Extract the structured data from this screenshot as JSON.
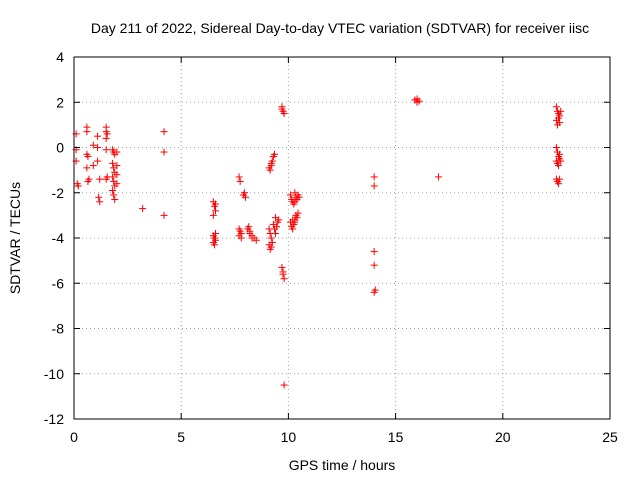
{
  "chart_data": {
    "type": "scatter",
    "title": "Day 211 of 2022, Sidereal Day-to-day VTEC variation (SDTVAR) for receiver iisc",
    "xlabel": "GPS time / hours",
    "ylabel": "SDTVAR / TECUs",
    "xlim": [
      0,
      25
    ],
    "ylim": [
      -12,
      4
    ],
    "xticks": [
      0,
      5,
      10,
      15,
      20,
      25
    ],
    "xtick_labels": [
      "0",
      "5",
      "10",
      "15",
      "20",
      "25"
    ],
    "yticks": [
      4,
      2,
      0,
      -2,
      -4,
      -6,
      -8,
      -10,
      -12
    ],
    "ytick_labels": [
      "4",
      "2",
      "0",
      "-2",
      "-4",
      "-6",
      "-8",
      "-10",
      "-12"
    ],
    "grid": true,
    "marker": "+",
    "color": "#ff0000",
    "series": [
      {
        "name": "SDTVAR",
        "points": [
          [
            0.1,
            0.6
          ],
          [
            0.1,
            -0.1
          ],
          [
            0.1,
            -0.6
          ],
          [
            0.15,
            -1.6
          ],
          [
            0.2,
            -1.7
          ],
          [
            0.6,
            0.9
          ],
          [
            0.6,
            0.7
          ],
          [
            0.6,
            -0.3
          ],
          [
            0.65,
            -0.4
          ],
          [
            0.6,
            -0.9
          ],
          [
            0.7,
            -1.4
          ],
          [
            0.65,
            -1.5
          ],
          [
            0.9,
            -0.8
          ],
          [
            0.9,
            0.1
          ],
          [
            1.1,
            0.5
          ],
          [
            1.1,
            -0.6
          ],
          [
            1.2,
            -1.4
          ],
          [
            1.15,
            -2.2
          ],
          [
            1.2,
            -2.4
          ],
          [
            1.1,
            0.0
          ],
          [
            1.5,
            0.9
          ],
          [
            1.5,
            0.7
          ],
          [
            1.55,
            0.6
          ],
          [
            1.5,
            0.4
          ],
          [
            1.5,
            -0.1
          ],
          [
            1.55,
            -1.3
          ],
          [
            1.5,
            -1.4
          ],
          [
            1.8,
            -0.1
          ],
          [
            1.85,
            -0.2
          ],
          [
            1.9,
            -0.3
          ],
          [
            1.8,
            -0.7
          ],
          [
            1.85,
            -0.9
          ],
          [
            1.9,
            -1.1
          ],
          [
            1.8,
            -1.3
          ],
          [
            1.85,
            -1.5
          ],
          [
            1.9,
            -1.7
          ],
          [
            1.8,
            -1.9
          ],
          [
            1.85,
            -2.1
          ],
          [
            1.9,
            -2.3
          ],
          [
            2.0,
            -0.2
          ],
          [
            2.0,
            -0.8
          ],
          [
            2.0,
            -1.2
          ],
          [
            2.0,
            -1.6
          ],
          [
            3.2,
            -2.7
          ],
          [
            4.2,
            0.7
          ],
          [
            4.2,
            -0.2
          ],
          [
            4.2,
            -3.0
          ],
          [
            6.5,
            -2.4
          ],
          [
            6.55,
            -2.6
          ],
          [
            6.6,
            -2.8
          ],
          [
            6.5,
            -3.0
          ],
          [
            6.6,
            -2.5
          ],
          [
            6.5,
            -3.9
          ],
          [
            6.55,
            -4.0
          ],
          [
            6.6,
            -4.1
          ],
          [
            6.5,
            -4.2
          ],
          [
            6.6,
            -3.8
          ],
          [
            6.55,
            -4.3
          ],
          [
            7.7,
            -1.3
          ],
          [
            7.75,
            -1.5
          ],
          [
            7.7,
            -3.6
          ],
          [
            7.8,
            -3.8
          ],
          [
            7.7,
            -3.9
          ],
          [
            7.8,
            -4.0
          ],
          [
            7.75,
            -3.7
          ],
          [
            7.9,
            -2.1
          ],
          [
            8.0,
            -2.2
          ],
          [
            7.95,
            -2.0
          ],
          [
            8.1,
            -3.6
          ],
          [
            8.2,
            -3.7
          ],
          [
            8.3,
            -3.9
          ],
          [
            8.4,
            -4.0
          ],
          [
            8.5,
            -4.1
          ],
          [
            8.2,
            -3.8
          ],
          [
            8.3,
            -4.0
          ],
          [
            8.15,
            -3.5
          ],
          [
            9.1,
            -3.6
          ],
          [
            9.15,
            -3.8
          ],
          [
            9.2,
            -4.0
          ],
          [
            9.25,
            -4.2
          ],
          [
            9.1,
            -4.3
          ],
          [
            9.2,
            -4.4
          ],
          [
            9.15,
            -4.5
          ],
          [
            9.3,
            -3.4
          ],
          [
            9.35,
            -3.6
          ],
          [
            9.4,
            -3.8
          ],
          [
            9.45,
            -3.5
          ],
          [
            9.5,
            -3.3
          ],
          [
            9.55,
            -3.2
          ],
          [
            9.4,
            -3.1
          ],
          [
            9.1,
            -0.9
          ],
          [
            9.15,
            -1.0
          ],
          [
            9.2,
            -0.8
          ],
          [
            9.25,
            -0.6
          ],
          [
            9.3,
            -0.4
          ],
          [
            9.35,
            -0.3
          ],
          [
            9.2,
            -0.7
          ],
          [
            9.7,
            1.8
          ],
          [
            9.75,
            1.6
          ],
          [
            9.8,
            1.5
          ],
          [
            9.7,
            1.7
          ],
          [
            9.7,
            -5.3
          ],
          [
            9.75,
            -5.6
          ],
          [
            9.8,
            -5.8
          ],
          [
            9.75,
            -5.5
          ],
          [
            9.8,
            -10.5
          ],
          [
            10.1,
            -3.3
          ],
          [
            10.15,
            -3.5
          ],
          [
            10.2,
            -3.6
          ],
          [
            10.25,
            -3.4
          ],
          [
            10.3,
            -3.2
          ],
          [
            10.35,
            -3.0
          ],
          [
            10.4,
            -3.1
          ],
          [
            10.45,
            -2.9
          ],
          [
            10.3,
            -3.3
          ],
          [
            10.2,
            -3.2
          ],
          [
            10.1,
            -2.1
          ],
          [
            10.15,
            -2.3
          ],
          [
            10.2,
            -2.4
          ],
          [
            10.3,
            -2.0
          ],
          [
            10.35,
            -2.2
          ],
          [
            10.4,
            -2.3
          ],
          [
            10.45,
            -2.1
          ],
          [
            10.5,
            -2.2
          ],
          [
            10.25,
            -2.5
          ],
          [
            10.3,
            -2.4
          ],
          [
            14.0,
            -1.3
          ],
          [
            14.0,
            -1.7
          ],
          [
            14.0,
            -4.6
          ],
          [
            14.0,
            -5.2
          ],
          [
            14.05,
            -6.3
          ],
          [
            14.0,
            -6.4
          ],
          [
            15.9,
            2.1
          ],
          [
            16.0,
            2.15
          ],
          [
            16.1,
            2.05
          ],
          [
            16.0,
            2.0
          ],
          [
            17.0,
            -1.3
          ],
          [
            22.5,
            1.8
          ],
          [
            22.55,
            1.6
          ],
          [
            22.6,
            1.5
          ],
          [
            22.65,
            1.4
          ],
          [
            22.5,
            1.2
          ],
          [
            22.55,
            1.0
          ],
          [
            22.7,
            1.6
          ],
          [
            22.6,
            1.3
          ],
          [
            22.65,
            1.1
          ],
          [
            22.5,
            0.0
          ],
          [
            22.55,
            -0.2
          ],
          [
            22.6,
            -0.4
          ],
          [
            22.65,
            -0.5
          ],
          [
            22.5,
            -0.6
          ],
          [
            22.55,
            -0.7
          ],
          [
            22.6,
            -0.8
          ],
          [
            22.7,
            -0.6
          ],
          [
            22.65,
            -0.3
          ],
          [
            22.5,
            -1.4
          ],
          [
            22.55,
            -1.5
          ],
          [
            22.6,
            -1.6
          ],
          [
            22.65,
            -1.4
          ]
        ]
      }
    ]
  }
}
